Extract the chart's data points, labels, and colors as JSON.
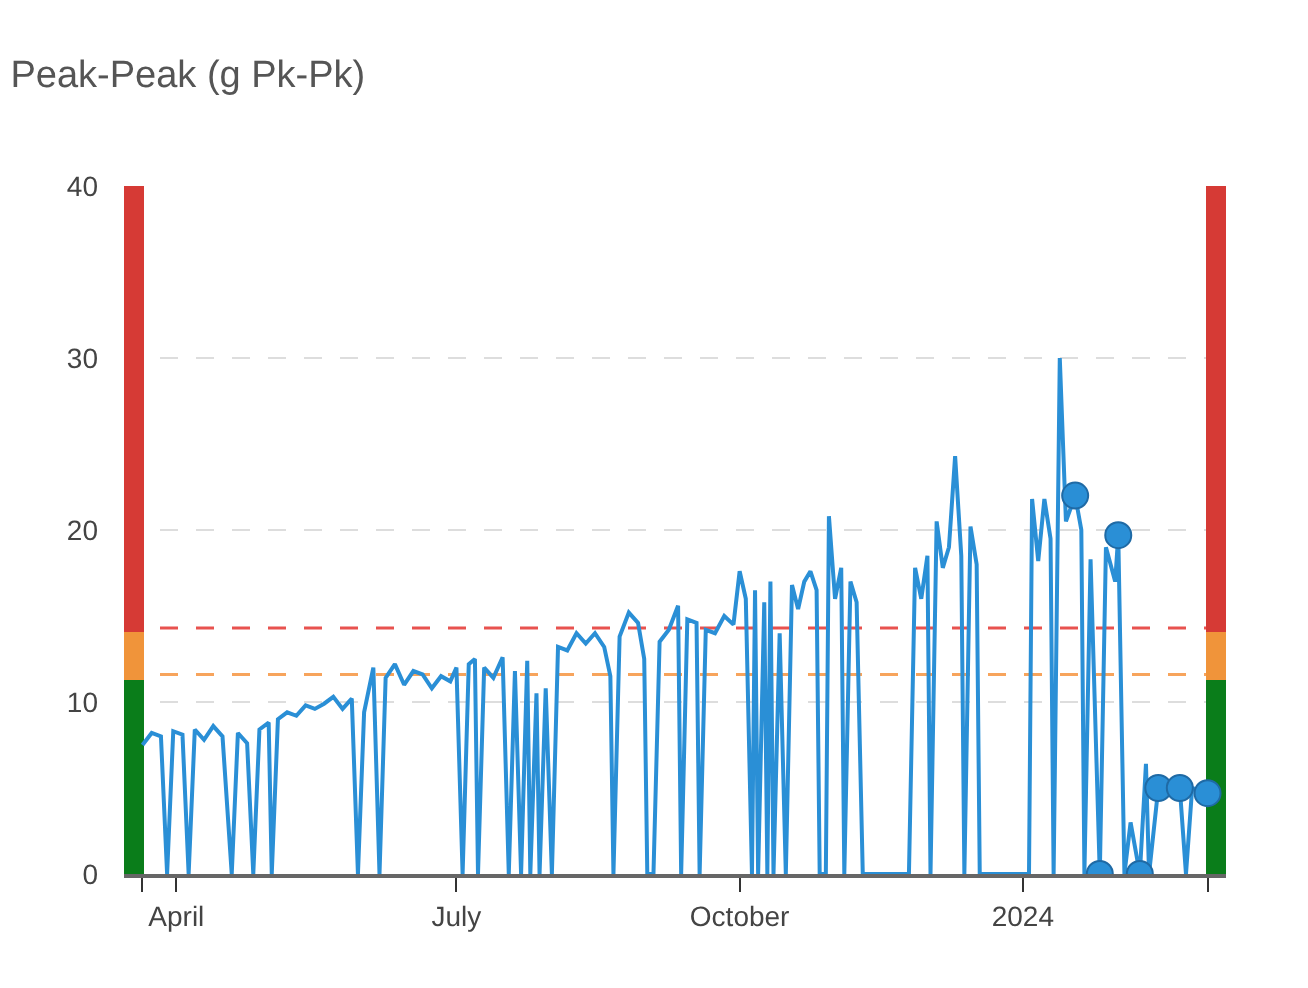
{
  "chart_data": {
    "type": "line",
    "title": "Peak-Peak (g Pk-Pk)",
    "xlim": [
      "2023-03-15",
      "2024-03-07"
    ],
    "xticks": [
      {
        "value": "2023-03-21",
        "label": null
      },
      {
        "value": "2023-04-01",
        "label": "April"
      },
      {
        "value": "2023-07-01",
        "label": "July"
      },
      {
        "value": "2023-10-01",
        "label": "October"
      },
      {
        "value": "2024-01-01",
        "label": "2024"
      },
      {
        "value": "2024-03-01",
        "label": null
      }
    ],
    "ylim": [
      0,
      40
    ],
    "yticks": [
      0,
      10,
      20,
      30,
      40
    ],
    "grid": "y",
    "series": [
      {
        "color": "#2a8fd6",
        "marker": "none",
        "line_style": "solid",
        "x": [
          "2023-03-21",
          "2023-03-24",
          "2023-03-27",
          "2023-03-29",
          "2023-03-31",
          "2023-04-03",
          "2023-04-05",
          "2023-04-07",
          "2023-04-10",
          "2023-04-13",
          "2023-04-16",
          "2023-04-19",
          "2023-04-21",
          "2023-04-24",
          "2023-04-26",
          "2023-04-28",
          "2023-05-01",
          "2023-05-02",
          "2023-05-04",
          "2023-05-07",
          "2023-05-10",
          "2023-05-13",
          "2023-05-16",
          "2023-05-19",
          "2023-05-22",
          "2023-05-25",
          "2023-05-28",
          "2023-05-30",
          "2023-06-01",
          "2023-06-04",
          "2023-06-06",
          "2023-06-08",
          "2023-06-11",
          "2023-06-14",
          "2023-06-17",
          "2023-06-20",
          "2023-06-23",
          "2023-06-26",
          "2023-06-29",
          "2023-07-01",
          "2023-07-03",
          "2023-07-05",
          "2023-07-07",
          "2023-07-08",
          "2023-07-10",
          "2023-07-13",
          "2023-07-16",
          "2023-07-18",
          "2023-07-20",
          "2023-07-22",
          "2023-07-24",
          "2023-07-25",
          "2023-07-27",
          "2023-07-28",
          "2023-07-30",
          "2023-08-01",
          "2023-08-03",
          "2023-08-06",
          "2023-08-09",
          "2023-08-12",
          "2023-08-15",
          "2023-08-18",
          "2023-08-20",
          "2023-08-21",
          "2023-08-23",
          "2023-08-26",
          "2023-08-29",
          "2023-08-31",
          "2023-09-01",
          "2023-09-03",
          "2023-09-05",
          "2023-09-08",
          "2023-09-11",
          "2023-09-12",
          "2023-09-14",
          "2023-09-17",
          "2023-09-18",
          "2023-09-20",
          "2023-09-23",
          "2023-09-26",
          "2023-09-29",
          "2023-10-01",
          "2023-10-03",
          "2023-10-05",
          "2023-10-06",
          "2023-10-07",
          "2023-10-09",
          "2023-10-10",
          "2023-10-11",
          "2023-10-12",
          "2023-10-14",
          "2023-10-16",
          "2023-10-18",
          "2023-10-20",
          "2023-10-22",
          "2023-10-24",
          "2023-10-26",
          "2023-10-27",
          "2023-10-29",
          "2023-10-30",
          "2023-11-01",
          "2023-11-03",
          "2023-11-04",
          "2023-11-06",
          "2023-11-08",
          "2023-11-10",
          "2023-11-12",
          "2023-11-25",
          "2023-11-27",
          "2023-11-29",
          "2023-12-01",
          "2023-12-02",
          "2023-12-04",
          "2023-12-06",
          "2023-12-08",
          "2023-12-10",
          "2023-12-12",
          "2023-12-13",
          "2023-12-15",
          "2023-12-17",
          "2023-12-18",
          "2024-01-03",
          "2024-01-04",
          "2024-01-06",
          "2024-01-08",
          "2024-01-10",
          "2024-01-11",
          "2024-01-13",
          "2024-01-15",
          "2024-01-18",
          "2024-01-20",
          "2024-01-21",
          "2024-01-23",
          "2024-01-26",
          "2024-01-28",
          "2024-01-31",
          "2024-02-01",
          "2024-02-03",
          "2024-02-05",
          "2024-02-08",
          "2024-02-10",
          "2024-02-11",
          "2024-02-14",
          "2024-02-18",
          "2024-02-21",
          "2024-02-23",
          "2024-02-25",
          "2024-03-01"
        ],
        "values": [
          7.5,
          8.2,
          8.0,
          0,
          8.3,
          8.1,
          0,
          8.4,
          7.8,
          8.6,
          8.0,
          0,
          8.2,
          7.6,
          0,
          8.4,
          8.8,
          0,
          9.0,
          9.4,
          9.2,
          9.8,
          9.6,
          9.9,
          10.3,
          9.6,
          10.2,
          0,
          9.4,
          12.0,
          0,
          11.4,
          12.2,
          11.0,
          11.8,
          11.6,
          10.8,
          11.5,
          11.2,
          12.0,
          0,
          12.2,
          12.5,
          0,
          12.0,
          11.4,
          12.6,
          0,
          11.8,
          0,
          12.4,
          0,
          10.5,
          0,
          10.8,
          0,
          13.2,
          13.0,
          14.0,
          13.4,
          14.0,
          13.2,
          11.5,
          0,
          13.8,
          15.2,
          14.6,
          12.5,
          0,
          0,
          13.5,
          14.2,
          15.6,
          0,
          14.8,
          14.6,
          0,
          14.2,
          14.0,
          15.0,
          14.5,
          17.6,
          16.0,
          0,
          16.5,
          0,
          15.8,
          0,
          17.0,
          0,
          14.0,
          0,
          16.8,
          15.4,
          17.0,
          17.6,
          16.5,
          0,
          0,
          20.8,
          16.0,
          17.8,
          0,
          17.0,
          15.8,
          0,
          0,
          0,
          17.8,
          16.0,
          18.5,
          0,
          20.5,
          17.8,
          19.0,
          24.3,
          18.5,
          0,
          20.2,
          18.0,
          0,
          0,
          21.8,
          18.2,
          21.8,
          19.5,
          0,
          30.0,
          20.5,
          22.0,
          20.0,
          0,
          18.3,
          0,
          19.0,
          17.0,
          19.7,
          0,
          3.0,
          0,
          6.4,
          0,
          5.0,
          5.2,
          5.0,
          0,
          5.0,
          4.7
        ]
      },
      {
        "type": "scatter",
        "color": "#2a8fd6",
        "marker": "circle",
        "x": [
          "2024-01-18",
          "2024-01-26",
          "2024-02-01",
          "2024-02-08",
          "2024-02-14",
          "2024-02-21",
          "2024-03-01"
        ],
        "values": [
          22.0,
          0,
          19.7,
          0,
          5.0,
          5.0,
          4.7
        ]
      },
      {
        "type": "bar",
        "color": "#0a7d1a",
        "x": [
          "2023-03-18",
          "2024-03-04"
        ],
        "values": [
          11.3,
          11.3
        ]
      },
      {
        "type": "bar",
        "color": "#f0943a",
        "x": [
          "2023-03-18",
          "2024-03-04"
        ],
        "values": [
          2.8,
          2.8
        ]
      },
      {
        "type": "bar",
        "color": "#d63a35",
        "x": [
          "2023-03-18",
          "2024-03-04"
        ],
        "values": [
          25.9,
          25.9
        ]
      }
    ],
    "ref_lines": [
      {
        "axis": "y",
        "value": 14.3,
        "color": "#e8524f",
        "line_style": "dashed"
      },
      {
        "axis": "y",
        "value": 11.6,
        "color": "#f7a45c",
        "line_style": "dashed"
      }
    ],
    "stacked": true
  }
}
